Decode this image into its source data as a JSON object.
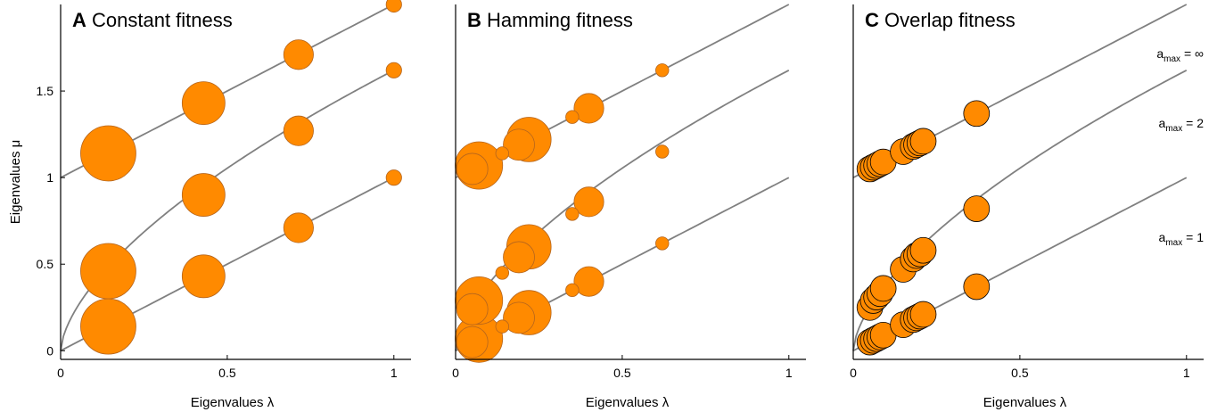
{
  "chart_data": [
    {
      "type": "scatter",
      "letter": "A",
      "title": "Constant fitness",
      "xlabel": "Eigenvalues λ",
      "ylabel": "Eigenvalues μ",
      "xlim": [
        0,
        1.03
      ],
      "ylim": [
        -0.05,
        2.0
      ],
      "xticks": [
        0,
        0.5,
        1
      ],
      "xtick_labels": [
        "0",
        "0.5",
        "1"
      ],
      "yticks": [
        0,
        0.5,
        1,
        1.5
      ],
      "ytick_labels": [
        "0",
        "0.5",
        "1",
        "1.5"
      ],
      "colors": {
        "marker": "#ff8a00",
        "marker_edge": "#b5651d",
        "curve": "#808080"
      },
      "curves": [
        {
          "a_max": "1",
          "x_start": 0
        },
        {
          "a_max": "2",
          "x_start": 0
        },
        {
          "a_max": "∞",
          "x_start": 0
        }
      ],
      "points": [
        {
          "x": 0.143,
          "y": 0.14,
          "weight": 1.0
        },
        {
          "x": 0.143,
          "y": 0.46,
          "weight": 1.0
        },
        {
          "x": 0.143,
          "y": 1.14,
          "weight": 1.0
        },
        {
          "x": 0.429,
          "y": 0.43,
          "weight": 0.55
        },
        {
          "x": 0.429,
          "y": 0.9,
          "weight": 0.55
        },
        {
          "x": 0.429,
          "y": 1.43,
          "weight": 0.55
        },
        {
          "x": 0.714,
          "y": 0.71,
          "weight": 0.22
        },
        {
          "x": 0.714,
          "y": 1.27,
          "weight": 0.22
        },
        {
          "x": 0.714,
          "y": 1.71,
          "weight": 0.22
        },
        {
          "x": 1.0,
          "y": 1.0,
          "weight": 0.03
        },
        {
          "x": 1.0,
          "y": 1.62,
          "weight": 0.03
        },
        {
          "x": 1.0,
          "y": 2.0,
          "weight": 0.03
        }
      ]
    },
    {
      "type": "scatter",
      "letter": "B",
      "title": "Hamming fitness",
      "xlabel": "Eigenvalues λ",
      "ylabel": "",
      "xlim": [
        0,
        1.03
      ],
      "ylim": [
        -0.05,
        2.0
      ],
      "xticks": [
        0,
        0.5,
        1
      ],
      "xtick_labels": [
        "0",
        "0.5",
        "1"
      ],
      "yticks": [],
      "ytick_labels": [],
      "colors": {
        "marker": "#ff8a00",
        "marker_edge": "#b5651d",
        "curve": "#808080"
      },
      "curves": [
        {
          "a_max": "1",
          "x_start": 0
        },
        {
          "a_max": "2",
          "x_start": 0
        },
        {
          "a_max": "∞",
          "x_start": 0
        }
      ],
      "points": [
        {
          "x": 0.07,
          "y": 0.07,
          "weight": 0.7
        },
        {
          "x": 0.05,
          "y": 0.05,
          "weight": 0.25
        },
        {
          "x": 0.07,
          "y": 0.29,
          "weight": 0.7
        },
        {
          "x": 0.05,
          "y": 0.24,
          "weight": 0.25
        },
        {
          "x": 0.07,
          "y": 1.07,
          "weight": 0.7
        },
        {
          "x": 0.05,
          "y": 1.05,
          "weight": 0.25
        },
        {
          "x": 0.14,
          "y": 0.14,
          "weight": 0.015
        },
        {
          "x": 0.14,
          "y": 0.45,
          "weight": 0.015
        },
        {
          "x": 0.14,
          "y": 1.14,
          "weight": 0.015
        },
        {
          "x": 0.19,
          "y": 0.19,
          "weight": 0.25
        },
        {
          "x": 0.19,
          "y": 0.54,
          "weight": 0.25
        },
        {
          "x": 0.19,
          "y": 1.19,
          "weight": 0.25
        },
        {
          "x": 0.22,
          "y": 0.22,
          "weight": 0.6
        },
        {
          "x": 0.22,
          "y": 0.6,
          "weight": 0.6
        },
        {
          "x": 0.22,
          "y": 1.22,
          "weight": 0.6
        },
        {
          "x": 0.35,
          "y": 0.35,
          "weight": 0.015
        },
        {
          "x": 0.35,
          "y": 0.79,
          "weight": 0.015
        },
        {
          "x": 0.35,
          "y": 1.35,
          "weight": 0.015
        },
        {
          "x": 0.4,
          "y": 0.4,
          "weight": 0.22
        },
        {
          "x": 0.4,
          "y": 0.86,
          "weight": 0.22
        },
        {
          "x": 0.4,
          "y": 1.4,
          "weight": 0.22
        },
        {
          "x": 0.62,
          "y": 0.62,
          "weight": 0.015
        },
        {
          "x": 0.62,
          "y": 1.15,
          "weight": 0.015
        },
        {
          "x": 0.62,
          "y": 1.62,
          "weight": 0.015
        }
      ]
    },
    {
      "type": "scatter",
      "letter": "C",
      "title": "Overlap fitness",
      "xlabel": "Eigenvalues λ",
      "ylabel": "",
      "xlim": [
        0,
        1.03
      ],
      "ylim": [
        -0.05,
        2.0
      ],
      "xticks": [
        0,
        0.5,
        1
      ],
      "xtick_labels": [
        "0",
        "0.5",
        "1"
      ],
      "yticks": [],
      "ytick_labels": [],
      "colors": {
        "marker": "#ff8a00",
        "marker_edge": "#000000",
        "curve": "#808080"
      },
      "curves": [
        {
          "a_max": "1",
          "x_start": 0,
          "label_main": "a",
          "label_sub": "max",
          "label_value": " = 1"
        },
        {
          "a_max": "2",
          "x_start": 0,
          "label_main": "a",
          "label_sub": "max",
          "label_value": " = 2"
        },
        {
          "a_max": "∞",
          "x_start": 0,
          "label_main": "a",
          "label_sub": "max",
          "label_value": " = ∞"
        }
      ],
      "points": [
        {
          "x": 0.05,
          "y": 0.05,
          "weight": 0.15
        },
        {
          "x": 0.06,
          "y": 0.06,
          "weight": 0.15
        },
        {
          "x": 0.07,
          "y": 0.07,
          "weight": 0.15
        },
        {
          "x": 0.08,
          "y": 0.08,
          "weight": 0.15
        },
        {
          "x": 0.09,
          "y": 0.09,
          "weight": 0.15
        },
        {
          "x": 0.15,
          "y": 0.15,
          "weight": 0.15
        },
        {
          "x": 0.18,
          "y": 0.18,
          "weight": 0.15
        },
        {
          "x": 0.19,
          "y": 0.19,
          "weight": 0.15
        },
        {
          "x": 0.2,
          "y": 0.2,
          "weight": 0.15
        },
        {
          "x": 0.21,
          "y": 0.21,
          "weight": 0.15
        },
        {
          "x": 0.37,
          "y": 0.37,
          "weight": 0.15
        },
        {
          "x": 0.05,
          "y": 0.25,
          "weight": 0.15
        },
        {
          "x": 0.06,
          "y": 0.29,
          "weight": 0.15
        },
        {
          "x": 0.07,
          "y": 0.31,
          "weight": 0.15
        },
        {
          "x": 0.08,
          "y": 0.33,
          "weight": 0.15
        },
        {
          "x": 0.09,
          "y": 0.36,
          "weight": 0.15
        },
        {
          "x": 0.15,
          "y": 0.47,
          "weight": 0.15
        },
        {
          "x": 0.18,
          "y": 0.53,
          "weight": 0.15
        },
        {
          "x": 0.19,
          "y": 0.55,
          "weight": 0.15
        },
        {
          "x": 0.2,
          "y": 0.56,
          "weight": 0.15
        },
        {
          "x": 0.21,
          "y": 0.58,
          "weight": 0.15
        },
        {
          "x": 0.37,
          "y": 0.82,
          "weight": 0.15
        },
        {
          "x": 0.05,
          "y": 1.05,
          "weight": 0.15
        },
        {
          "x": 0.06,
          "y": 1.06,
          "weight": 0.15
        },
        {
          "x": 0.07,
          "y": 1.07,
          "weight": 0.15
        },
        {
          "x": 0.08,
          "y": 1.08,
          "weight": 0.15
        },
        {
          "x": 0.09,
          "y": 1.09,
          "weight": 0.15
        },
        {
          "x": 0.15,
          "y": 1.15,
          "weight": 0.15
        },
        {
          "x": 0.18,
          "y": 1.18,
          "weight": 0.15
        },
        {
          "x": 0.19,
          "y": 1.19,
          "weight": 0.15
        },
        {
          "x": 0.2,
          "y": 1.2,
          "weight": 0.15
        },
        {
          "x": 0.21,
          "y": 1.21,
          "weight": 0.15
        },
        {
          "x": 0.37,
          "y": 1.37,
          "weight": 0.15
        }
      ]
    }
  ]
}
